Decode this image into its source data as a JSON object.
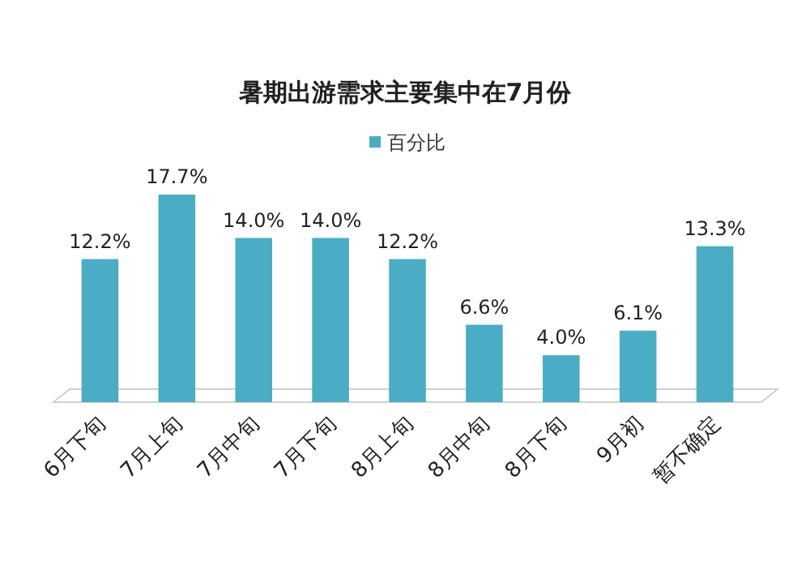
{
  "chart_data": {
    "type": "bar",
    "title": "暑期出游需求主要集中在7月份",
    "categories": [
      "6月下旬",
      "7月上旬",
      "7月中旬",
      "7月下旬",
      "8月上旬",
      "8月中旬",
      "8月下旬",
      "9月初",
      "暂不确定"
    ],
    "series": [
      {
        "name": "百分比",
        "color": "#4bacc6",
        "values": [
          12.2,
          17.7,
          14.0,
          14.0,
          12.2,
          6.6,
          4.0,
          6.1,
          13.3
        ],
        "value_labels": [
          "12.2%",
          "17.7%",
          "14.0%",
          "14.0%",
          "12.2%",
          "6.6%",
          "4.0%",
          "6.1%",
          "13.3%"
        ]
      }
    ],
    "legend": "top",
    "tick_labels": "x"
  }
}
